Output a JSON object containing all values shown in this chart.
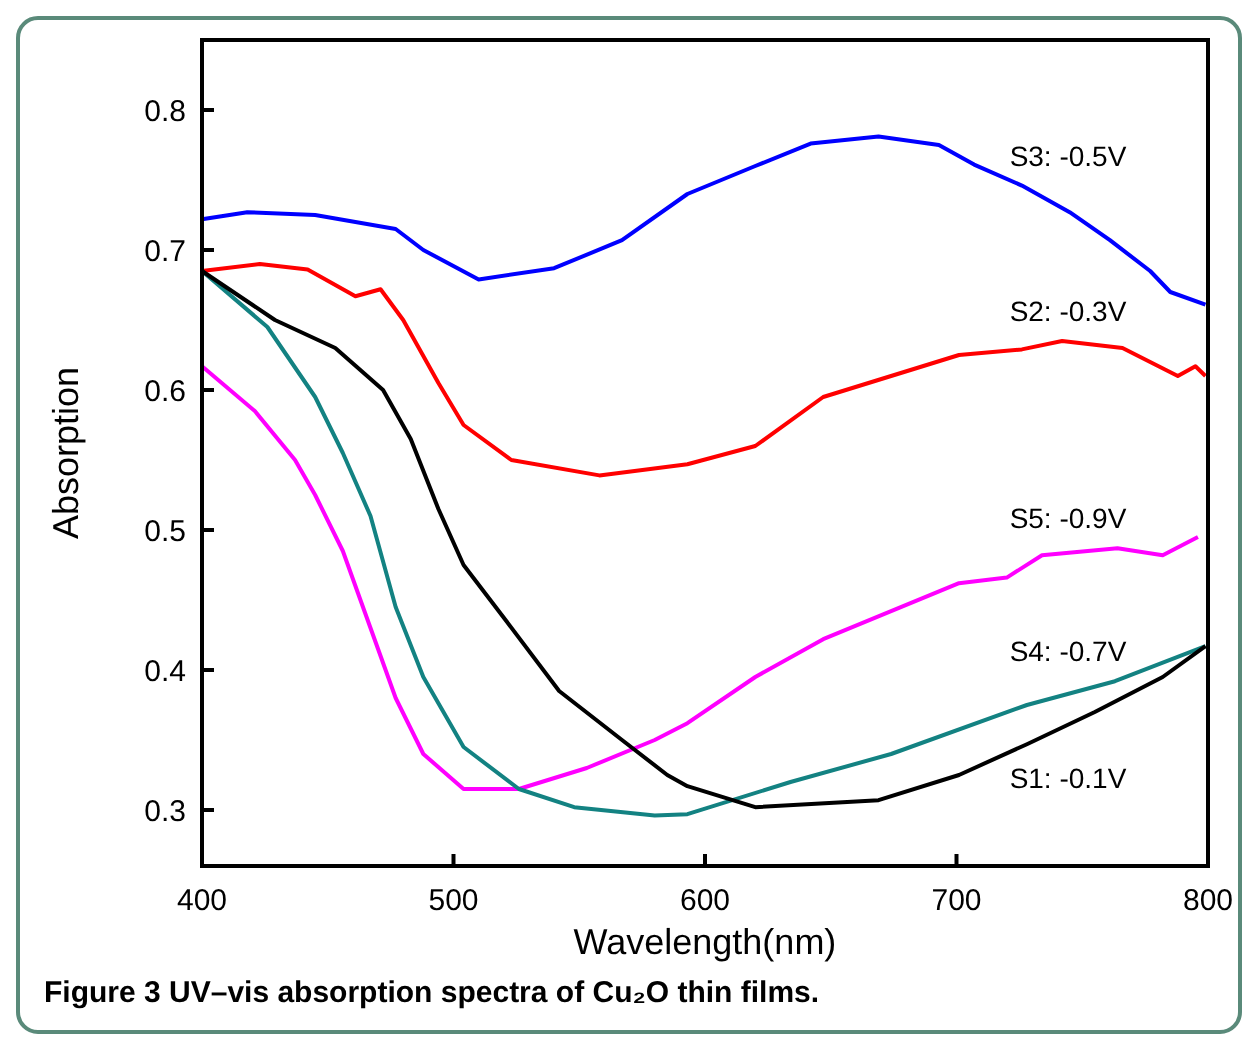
{
  "chart_data": {
    "type": "line",
    "xlabel": "Wavelength(nm)",
    "ylabel": "Absorption",
    "annotations": [
      "Figure 3 UV–vis absorption spectra of Cu₂O thin films."
    ],
    "xlim": [
      400,
      800
    ],
    "xticks": [
      400,
      500,
      600,
      700,
      800
    ],
    "ylim": [
      0.26,
      0.85
    ],
    "yticks": [
      0.3,
      0.4,
      0.5,
      0.6,
      0.7,
      0.8
    ],
    "grid": false,
    "line_style": "solid",
    "series": [
      {
        "name": "S3: -0.5V",
        "color": "#0000ff",
        "x": [
          400,
          418,
          445,
          477,
          488,
          510,
          540,
          567,
          593,
          620,
          642,
          669,
          693,
          707,
          726,
          745,
          761,
          777,
          785,
          799
        ],
        "values": [
          0.722,
          0.727,
          0.725,
          0.715,
          0.7,
          0.679,
          0.687,
          0.707,
          0.74,
          0.76,
          0.776,
          0.781,
          0.775,
          0.761,
          0.746,
          0.727,
          0.707,
          0.685,
          0.67,
          0.661
        ]
      },
      {
        "name": "S2: -0.3V",
        "color": "#ff0000",
        "x": [
          400,
          423,
          442,
          461,
          471,
          480,
          494,
          504,
          523,
          558,
          593,
          620,
          647,
          674,
          701,
          726,
          742,
          766,
          788,
          795,
          799
        ],
        "values": [
          0.685,
          0.69,
          0.686,
          0.667,
          0.672,
          0.65,
          0.605,
          0.575,
          0.55,
          0.539,
          0.547,
          0.56,
          0.595,
          0.61,
          0.625,
          0.629,
          0.635,
          0.63,
          0.61,
          0.617,
          0.61
        ]
      },
      {
        "name": "S5: -0.9V",
        "color": "#ff00ff",
        "x": [
          400,
          421,
          437,
          445,
          456,
          467,
          477,
          488,
          504,
          526,
          553,
          580,
          593,
          620,
          647,
          674,
          701,
          720,
          734,
          764,
          782,
          796
        ],
        "values": [
          0.617,
          0.585,
          0.55,
          0.525,
          0.485,
          0.43,
          0.38,
          0.34,
          0.315,
          0.315,
          0.33,
          0.35,
          0.362,
          0.395,
          0.422,
          0.442,
          0.462,
          0.466,
          0.482,
          0.487,
          0.482,
          0.495
        ]
      },
      {
        "name": "S4: -0.7V",
        "color": "#138282",
        "x": [
          400,
          426,
          445,
          456,
          467,
          477,
          488,
          504,
          526,
          548,
          580,
          593,
          634,
          674,
          728,
          763,
          799
        ],
        "values": [
          0.685,
          0.645,
          0.595,
          0.555,
          0.51,
          0.445,
          0.395,
          0.345,
          0.315,
          0.302,
          0.296,
          0.297,
          0.32,
          0.34,
          0.375,
          0.392,
          0.417
        ]
      },
      {
        "name": "S1: -0.1V",
        "color": "#000000",
        "x": [
          400,
          429,
          453,
          472,
          483,
          494,
          504,
          521,
          542,
          567,
          585,
          593,
          620,
          669,
          701,
          728,
          755,
          782,
          799
        ],
        "values": [
          0.685,
          0.65,
          0.63,
          0.6,
          0.565,
          0.515,
          0.475,
          0.435,
          0.385,
          0.35,
          0.325,
          0.317,
          0.302,
          0.307,
          0.325,
          0.347,
          0.37,
          0.395,
          0.417
        ]
      }
    ]
  }
}
